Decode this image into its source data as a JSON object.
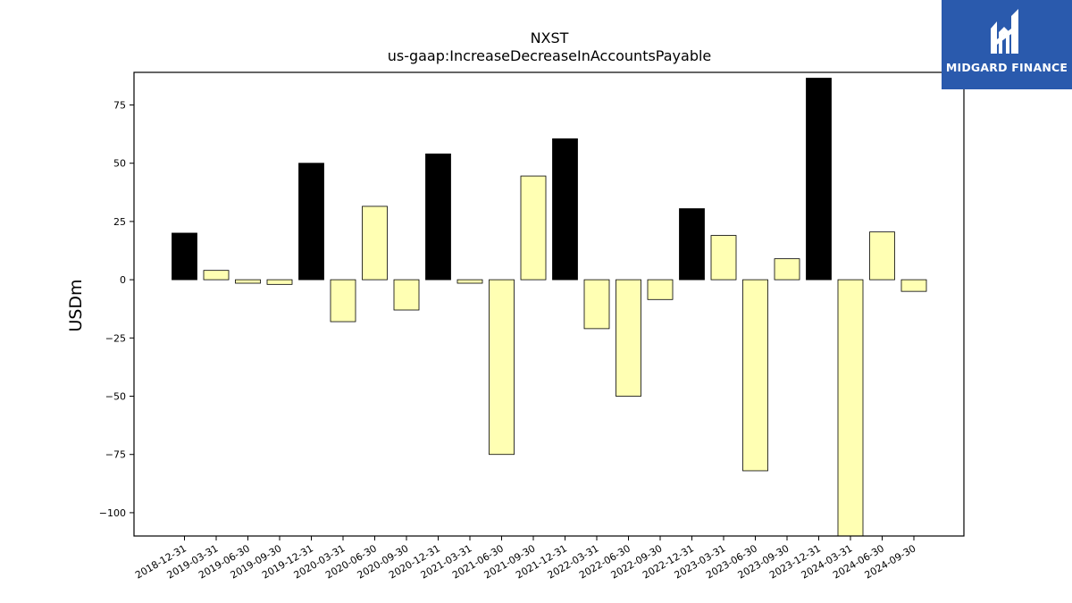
{
  "chart_data": {
    "type": "bar",
    "title": "NXST",
    "subtitle": "us-gaap:IncreaseDecreaseInAccountsPayable",
    "xlabel": "",
    "ylabel": "USDm",
    "ylim": [
      -110,
      89
    ],
    "yticks": [
      -100,
      -75,
      -50,
      -25,
      0,
      25,
      50,
      75
    ],
    "grid": false,
    "colors": {
      "q4": "#000000",
      "other": "#ffffb3",
      "edge": "#000000"
    },
    "categories": [
      "2018-12-31",
      "2019-03-31",
      "2019-06-30",
      "2019-09-30",
      "2019-12-31",
      "2020-03-31",
      "2020-06-30",
      "2020-09-30",
      "2020-12-31",
      "2021-03-31",
      "2021-06-30",
      "2021-09-30",
      "2021-12-31",
      "2022-03-31",
      "2022-06-30",
      "2022-09-30",
      "2022-12-31",
      "2023-03-31",
      "2023-06-30",
      "2023-09-30",
      "2023-12-31",
      "2024-03-31",
      "2024-06-30",
      "2024-09-30"
    ],
    "values": [
      20,
      4,
      -1.5,
      -2,
      50,
      -18,
      31.5,
      -13,
      54,
      -1.5,
      -75,
      44.5,
      60.5,
      -21,
      -50,
      -8.5,
      30.5,
      19,
      -82,
      9,
      86.5,
      -110,
      20.5,
      -5
    ]
  },
  "logo": {
    "text": "MIDGARD FINANCE",
    "bg": "#2a5aad",
    "fg": "#ffffff"
  }
}
